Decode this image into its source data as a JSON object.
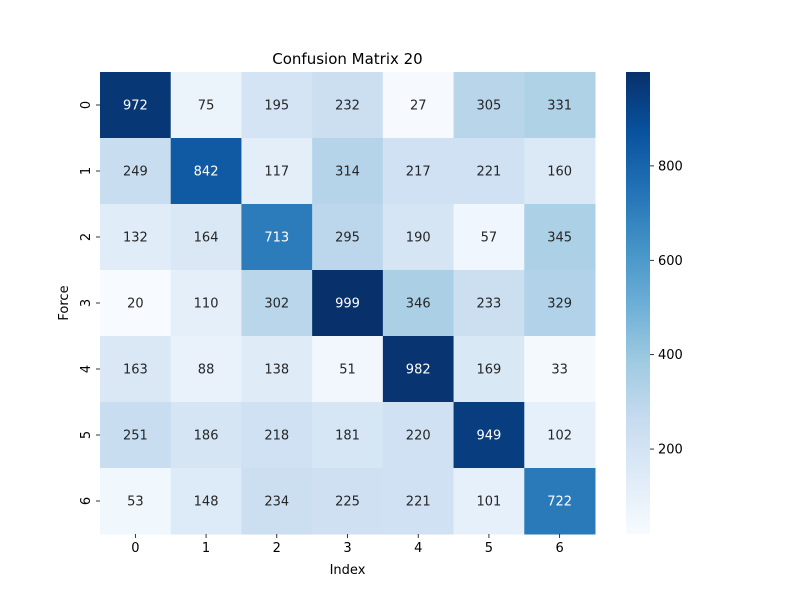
{
  "chart_data": {
    "type": "heatmap",
    "title": "Confusion Matrix 20",
    "xlabel": "Index",
    "ylabel": "Force",
    "x_categories": [
      "0",
      "1",
      "2",
      "3",
      "4",
      "5",
      "6"
    ],
    "y_categories": [
      "0",
      "1",
      "2",
      "3",
      "4",
      "5",
      "6"
    ],
    "values": [
      [
        972,
        75,
        195,
        232,
        27,
        305,
        331
      ],
      [
        249,
        842,
        117,
        314,
        217,
        221,
        160
      ],
      [
        132,
        164,
        713,
        295,
        190,
        57,
        345
      ],
      [
        20,
        110,
        302,
        999,
        346,
        233,
        329
      ],
      [
        163,
        88,
        138,
        51,
        982,
        169,
        33
      ],
      [
        251,
        186,
        218,
        181,
        220,
        949,
        102
      ],
      [
        53,
        148,
        234,
        225,
        221,
        101,
        722
      ]
    ],
    "colormap": "Blues",
    "colorbar": {
      "range": [
        20,
        999
      ],
      "ticks": [
        200,
        400,
        600,
        800
      ],
      "tick_labels": [
        "200",
        "400",
        "600",
        "800"
      ]
    }
  }
}
